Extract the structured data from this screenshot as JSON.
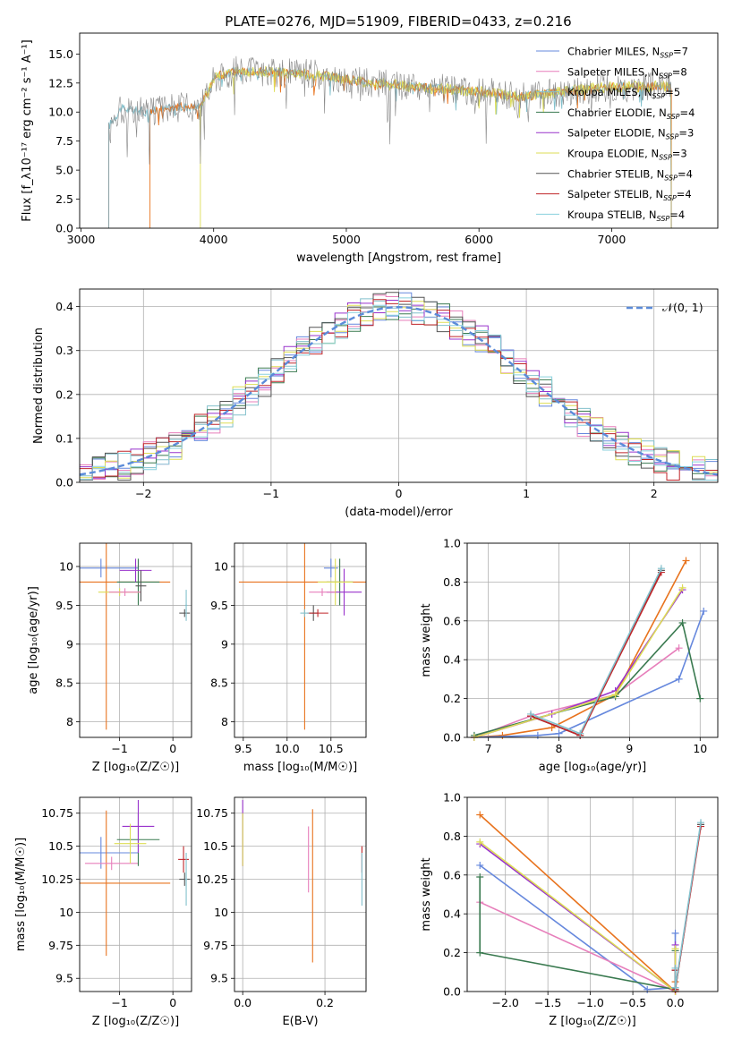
{
  "figure_title": "PLATE=0276, MJD=51909, FIBERID=0433, z=0.216",
  "colors": {
    "chabrier_miles": "#6688dd",
    "salpeter_miles": "#e77fbb",
    "kroupa_miles": "#82c0cc",
    "chabrier_elodie": "#3a7a50",
    "salpeter_elodie": "#9933cc",
    "kroupa_elodie": "#dddd55",
    "chabrier_stelib": "#555555",
    "salpeter_stelib": "#c0262a",
    "kroupa_stelib": "#88d0dd",
    "orange": "#e8731e",
    "grid": "#b0b0b0"
  },
  "chart_data": [
    {
      "id": "spectrum",
      "type": "line",
      "xlabel": "wavelength [Angstrom, rest frame]",
      "ylabel": "Flux [f_λ10⁻¹⁷ erg cm⁻² s⁻¹ A⁻¹]",
      "xlim": [
        2990,
        7800
      ],
      "ylim": [
        0,
        16.8
      ],
      "xticks": [
        3000,
        4000,
        5000,
        6000,
        7000
      ],
      "yticks": [
        0.0,
        2.5,
        5.0,
        7.5,
        10.0,
        12.5,
        15.0
      ],
      "legend_position": "top-right",
      "legend": [
        {
          "label": "Chabrier MILES, N",
          "sub": "SSP",
          "suffix": "=7",
          "color": "#6688dd"
        },
        {
          "label": "Salpeter MILES, N",
          "sub": "SSP",
          "suffix": "=8",
          "color": "#e77fbb"
        },
        {
          "label": "Kroupa MILES, N",
          "sub": "SSP",
          "suffix": "=5",
          "color": "#82c0cc"
        },
        {
          "label": "Chabrier ELODIE, N",
          "sub": "SSP",
          "suffix": "=4",
          "color": "#3a7a50"
        },
        {
          "label": "Salpeter ELODIE, N",
          "sub": "SSP",
          "suffix": "=3",
          "color": "#9933cc"
        },
        {
          "label": "Kroupa ELODIE, N",
          "sub": "SSP",
          "suffix": "=3",
          "color": "#dddd55"
        },
        {
          "label": "Chabrier STELIB, N",
          "sub": "SSP",
          "suffix": "=4",
          "color": "#555555"
        },
        {
          "label": "Salpeter STELIB, N",
          "sub": "SSP",
          "suffix": "=4",
          "color": "#c0262a"
        },
        {
          "label": "Kroupa STELIB, N",
          "sub": "SSP",
          "suffix": "=4",
          "color": "#88d0dd"
        }
      ],
      "continuum": [
        [
          3210,
          8.8
        ],
        [
          3300,
          10.3
        ],
        [
          3500,
          10.0
        ],
        [
          3700,
          10.4
        ],
        [
          3900,
          10.5
        ],
        [
          3970,
          12.0
        ],
        [
          4000,
          13.0
        ],
        [
          4200,
          13.6
        ],
        [
          4500,
          13.4
        ],
        [
          4800,
          13.2
        ],
        [
          5000,
          12.8
        ],
        [
          5300,
          12.4
        ],
        [
          5600,
          12.1
        ],
        [
          6000,
          11.8
        ],
        [
          6300,
          11.3
        ],
        [
          6600,
          11.7
        ],
        [
          7000,
          12.2
        ],
        [
          7400,
          12.2
        ]
      ],
      "series_ranges": [
        {
          "start": 3210,
          "end": 7450,
          "color": "#82c0cc",
          "noise": 0.4
        },
        {
          "start": 3520,
          "end": 7450,
          "color": "#e8731e",
          "noise": 0.4
        },
        {
          "start": 3900,
          "end": 7450,
          "color": "#dddd55",
          "noise": 0.5
        },
        {
          "start": 3210,
          "end": 7450,
          "color": "#888888",
          "noise": 1.3
        }
      ]
    },
    {
      "id": "residuals",
      "type": "line",
      "xlabel": "(data-model)/error",
      "ylabel": "Normed distribution",
      "xlim": [
        -2.5,
        2.5
      ],
      "ylim": [
        0,
        0.44
      ],
      "xticks": [
        -2,
        -1,
        0,
        1,
        2
      ],
      "yticks": [
        0.0,
        0.1,
        0.2,
        0.3,
        0.4
      ],
      "legend_label": "𝒩(0, 1)",
      "legend_position": "top-right",
      "bin_width": 0.1,
      "normal_curve": {
        "mean": 0,
        "sigma": 1,
        "color": "#5b8bd9"
      }
    },
    {
      "id": "age_vs_Z",
      "type": "scatter",
      "xlabel": "Z [log₁₀(Z/Z☉)]",
      "ylabel": "age  [log₁₀(age/yr)]",
      "xlim": [
        -1.75,
        0.35
      ],
      "ylim": [
        7.8,
        10.3
      ],
      "xticks": [
        -1,
        0
      ],
      "yticks": [
        8.0,
        8.5,
        9.0,
        9.5,
        10.0
      ],
      "points": [
        {
          "x": -1.35,
          "y": 9.98,
          "xerr": 0.7,
          "yerr": 0.12,
          "color": "#6688dd"
        },
        {
          "x": -1.25,
          "y": 9.8,
          "xerr": 1.2,
          "yerr": 1.9,
          "color": "#e8731e"
        },
        {
          "x": -0.65,
          "y": 9.8,
          "xerr": 0.4,
          "yerr": 0.3,
          "color": "#3a7a50"
        },
        {
          "x": -0.7,
          "y": 9.95,
          "xerr": 0.3,
          "yerr": 0.15,
          "color": "#9933cc"
        },
        {
          "x": -1.0,
          "y": 9.67,
          "xerr": 0.4,
          "yerr": 0.05,
          "color": "#dddd55"
        },
        {
          "x": -0.9,
          "y": 9.67,
          "xerr": 0.3,
          "yerr": 0.05,
          "color": "#e77fbb"
        },
        {
          "x": -0.6,
          "y": 9.75,
          "xerr": 0.1,
          "yerr": 0.2,
          "color": "#555555"
        },
        {
          "x": 0.22,
          "y": 9.4,
          "xerr": 0.1,
          "yerr": 0.05,
          "color": "#555555"
        },
        {
          "x": 0.25,
          "y": 9.5,
          "xerr": 0.02,
          "yerr": 0.2,
          "color": "#82c0cc"
        }
      ]
    },
    {
      "id": "age_vs_mass",
      "type": "scatter",
      "xlabel": "mass [log₁₀(M/M☉)]",
      "xlim": [
        9.4,
        10.9
      ],
      "ylim": [
        7.8,
        10.3
      ],
      "xticks": [
        9.5,
        10.0,
        10.5
      ],
      "yticks": [
        8.0,
        8.5,
        9.0,
        9.5,
        10.0
      ],
      "points": [
        {
          "x": 10.5,
          "y": 9.98,
          "xerr": 0.08,
          "yerr": 0.12,
          "color": "#6688dd"
        },
        {
          "x": 10.2,
          "y": 9.8,
          "xerr": 0.75,
          "yerr": 1.9,
          "color": "#e8731e"
        },
        {
          "x": 10.6,
          "y": 9.8,
          "xerr": 0.15,
          "yerr": 0.3,
          "color": "#3a7a50"
        },
        {
          "x": 10.65,
          "y": 9.67,
          "xerr": 0.2,
          "yerr": 0.3,
          "color": "#9933cc"
        },
        {
          "x": 10.55,
          "y": 9.8,
          "xerr": 0.2,
          "yerr": 0.3,
          "color": "#dddd55"
        },
        {
          "x": 10.4,
          "y": 9.67,
          "xerr": 0.15,
          "yerr": 0.05,
          "color": "#e77fbb"
        },
        {
          "x": 10.3,
          "y": 9.4,
          "xerr": 0.05,
          "yerr": 0.1,
          "color": "#555555"
        },
        {
          "x": 10.35,
          "y": 9.4,
          "xerr": 0.12,
          "yerr": 0.05,
          "color": "#c0262a"
        },
        {
          "x": 10.2,
          "y": 9.4,
          "xerr": 0.05,
          "yerr": 0.05,
          "color": "#82c0cc"
        }
      ]
    },
    {
      "id": "mass_weight_vs_age",
      "type": "line",
      "xlabel": "age  [log₁₀(age/yr)]",
      "ylabel": "mass weight",
      "xlim": [
        6.7,
        10.25
      ],
      "ylim": [
        0,
        1.0
      ],
      "xticks": [
        7,
        8,
        9,
        10
      ],
      "yticks": [
        0.0,
        0.2,
        0.4,
        0.6,
        0.8,
        1.0
      ],
      "series": [
        {
          "color": "#e8731e",
          "x": [
            6.8,
            7.2,
            7.9,
            8.8,
            9.8
          ],
          "y": [
            0.0,
            0.01,
            0.05,
            0.22,
            0.91
          ]
        },
        {
          "color": "#6688dd",
          "x": [
            6.8,
            7.7,
            8.0,
            9.7,
            10.05
          ],
          "y": [
            0.0,
            0.01,
            0.02,
            0.3,
            0.65
          ]
        },
        {
          "color": "#e77fbb",
          "x": [
            6.8,
            7.6,
            8.8,
            9.7
          ],
          "y": [
            0.0,
            0.11,
            0.22,
            0.46
          ]
        },
        {
          "color": "#3a7a50",
          "x": [
            6.8,
            8.8,
            9.75,
            10.0
          ],
          "y": [
            0.01,
            0.21,
            0.59,
            0.2
          ]
        },
        {
          "color": "#9933cc",
          "x": [
            6.8,
            7.9,
            8.8,
            9.75
          ],
          "y": [
            0.0,
            0.12,
            0.24,
            0.76
          ]
        },
        {
          "color": "#dddd55",
          "x": [
            6.8,
            8.8,
            9.75
          ],
          "y": [
            0.0,
            0.22,
            0.77
          ]
        },
        {
          "color": "#555555",
          "x": [
            7.6,
            8.3,
            9.45
          ],
          "y": [
            0.11,
            0.01,
            0.86
          ]
        },
        {
          "color": "#c0262a",
          "x": [
            7.6,
            8.3,
            9.45
          ],
          "y": [
            0.11,
            0.01,
            0.85
          ]
        },
        {
          "color": "#82c0cc",
          "x": [
            7.6,
            8.3,
            9.45
          ],
          "y": [
            0.12,
            0.02,
            0.87
          ]
        }
      ]
    },
    {
      "id": "mass_vs_Z",
      "type": "scatter",
      "xlabel": "Z [log₁₀(Z/Z☉)]",
      "ylabel": "mass [log₁₀(M/M☉)]",
      "xlim": [
        -1.75,
        0.35
      ],
      "ylim": [
        9.4,
        10.87
      ],
      "xticks": [
        -1,
        0
      ],
      "yticks": [
        9.5,
        9.75,
        10.0,
        10.25,
        10.5,
        10.75
      ],
      "points": [
        {
          "x": -1.35,
          "y": 10.45,
          "xerr": 0.7,
          "yerr": 0.12,
          "color": "#6688dd"
        },
        {
          "x": -1.25,
          "y": 10.22,
          "xerr": 1.2,
          "yerr": 0.55,
          "color": "#e8731e"
        },
        {
          "x": -1.15,
          "y": 10.37,
          "xerr": 0.5,
          "yerr": 0.05,
          "color": "#e77fbb"
        },
        {
          "x": -0.65,
          "y": 10.55,
          "xerr": 0.4,
          "yerr": 0.2,
          "color": "#3a7a50"
        },
        {
          "x": -0.65,
          "y": 10.65,
          "xerr": 0.3,
          "yerr": 0.2,
          "color": "#9933cc"
        },
        {
          "x": -0.8,
          "y": 10.52,
          "xerr": 0.3,
          "yerr": 0.15,
          "color": "#dddd55"
        },
        {
          "x": 0.2,
          "y": 10.4,
          "xerr": 0.1,
          "yerr": 0.1,
          "color": "#c0262a"
        },
        {
          "x": 0.22,
          "y": 10.25,
          "xerr": 0.1,
          "yerr": 0.05,
          "color": "#555555"
        },
        {
          "x": 0.25,
          "y": 10.25,
          "xerr": 0.02,
          "yerr": 0.2,
          "color": "#82c0cc"
        }
      ]
    },
    {
      "id": "mass_vs_ebv",
      "type": "scatter",
      "xlabel": "E(B-V)",
      "xlim": [
        -0.02,
        0.3
      ],
      "ylim": [
        9.4,
        10.87
      ],
      "xticks": [
        0.0,
        0.2
      ],
      "yticks": [
        9.5,
        9.75,
        10.0,
        10.25,
        10.5,
        10.75
      ],
      "points": [
        {
          "x": 0.0,
          "y": 10.6,
          "xerr": 0.0,
          "yerr": 0.25,
          "color": "#9933cc"
        },
        {
          "x": 0.0,
          "y": 10.55,
          "xerr": 0.0,
          "yerr": 0.2,
          "color": "#dddd55"
        },
        {
          "x": 0.16,
          "y": 10.4,
          "xerr": 0.0,
          "yerr": 0.25,
          "color": "#e77fbb"
        },
        {
          "x": 0.17,
          "y": 10.2,
          "xerr": 0.0,
          "yerr": 0.58,
          "color": "#e8731e"
        },
        {
          "x": 0.29,
          "y": 10.4,
          "xerr": 0.0,
          "yerr": 0.1,
          "color": "#c0262a"
        },
        {
          "x": 0.29,
          "y": 10.25,
          "xerr": 0.0,
          "yerr": 0.2,
          "color": "#82c0cc"
        }
      ]
    },
    {
      "id": "mass_weight_vs_Z",
      "type": "line",
      "xlabel": "Z [log₁₀(Z/Z☉)]",
      "ylabel": "mass weight",
      "xlim": [
        -2.45,
        0.5
      ],
      "ylim": [
        0,
        1.0
      ],
      "xticks": [
        -2.0,
        -1.5,
        -1.0,
        -0.5,
        0.0
      ],
      "yticks": [
        0.0,
        0.2,
        0.4,
        0.6,
        0.8,
        1.0
      ],
      "series": [
        {
          "color": "#e8731e",
          "x": [
            -2.3,
            0.0,
            0.0
          ],
          "y": [
            0.91,
            0.0,
            0.05
          ]
        },
        {
          "color": "#6688dd",
          "x": [
            -2.3,
            -0.33,
            0.0,
            0.0
          ],
          "y": [
            0.65,
            0.01,
            0.02,
            0.3
          ]
        },
        {
          "color": "#e77fbb",
          "x": [
            -2.3,
            0.0,
            0.0
          ],
          "y": [
            0.46,
            0.0,
            0.11
          ]
        },
        {
          "color": "#3a7a50",
          "x": [
            -2.3,
            -2.3,
            0.0,
            0.0
          ],
          "y": [
            0.59,
            0.2,
            0.01,
            0.21
          ]
        },
        {
          "color": "#9933cc",
          "x": [
            -2.3,
            0.0,
            0.0
          ],
          "y": [
            0.76,
            0.0,
            0.24
          ]
        },
        {
          "color": "#dddd55",
          "x": [
            -2.3,
            0.0,
            0.0
          ],
          "y": [
            0.77,
            0.0,
            0.22
          ]
        },
        {
          "color": "#555555",
          "x": [
            0.0,
            0.0,
            0.3
          ],
          "y": [
            0.11,
            0.01,
            0.86
          ]
        },
        {
          "color": "#c0262a",
          "x": [
            0.0,
            0.0,
            0.3
          ],
          "y": [
            0.11,
            0.01,
            0.85
          ]
        },
        {
          "color": "#82c0cc",
          "x": [
            0.0,
            0.0,
            0.3
          ],
          "y": [
            0.12,
            0.02,
            0.87
          ]
        }
      ]
    }
  ]
}
